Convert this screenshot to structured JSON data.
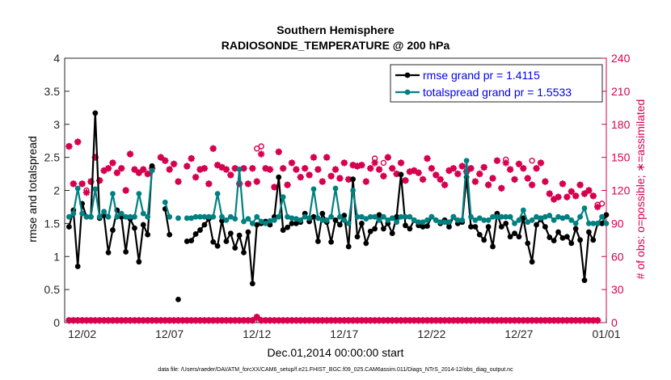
{
  "chart_data": {
    "type": "line",
    "title": "Southern Hemisphere",
    "subtitle": "RADIOSONDE_TEMPERATURE @ 200 hPa",
    "xlabel": "Dec.01,2014 00:00:00 start",
    "ylabel_left": "rmse and totalspread",
    "ylabel_right": "# of obs: o=possible; ∗=assimilated",
    "xlim": [
      1,
      32
    ],
    "ylim_left": [
      0,
      4
    ],
    "ylim_right": [
      0,
      240
    ],
    "x_ticks": [
      {
        "value": 2,
        "label": "12/02"
      },
      {
        "value": 7,
        "label": "12/07"
      },
      {
        "value": 12,
        "label": "12/12"
      },
      {
        "value": 17,
        "label": "12/17"
      },
      {
        "value": 22,
        "label": "12/22"
      },
      {
        "value": 27,
        "label": "12/27"
      },
      {
        "value": 32,
        "label": "01/01"
      }
    ],
    "y_ticks_left": [
      "0",
      "0.5",
      "1",
      "1.5",
      "2",
      "2.5",
      "3",
      "3.5",
      "4"
    ],
    "y_ticks_right": [
      "0",
      "30",
      "60",
      "90",
      "120",
      "150",
      "180",
      "210",
      "240"
    ],
    "x": [
      1.25,
      1.5,
      1.75,
      2,
      2.25,
      2.5,
      2.75,
      3,
      3.25,
      3.5,
      3.75,
      4,
      4.25,
      4.5,
      4.75,
      5,
      5.25,
      5.5,
      5.75,
      6,
      6.25,
      6.5,
      6.75,
      7,
      7.25,
      7.5,
      7.75,
      8,
      8.25,
      8.5,
      8.75,
      9,
      9.25,
      9.5,
      9.75,
      10,
      10.25,
      10.5,
      10.75,
      11,
      11.25,
      11.5,
      11.75,
      12,
      12.25,
      12.5,
      12.75,
      13,
      13.25,
      13.5,
      13.75,
      14,
      14.25,
      14.5,
      14.75,
      15,
      15.25,
      15.5,
      15.75,
      16,
      16.25,
      16.5,
      16.75,
      17,
      17.25,
      17.5,
      17.75,
      18,
      18.25,
      18.5,
      18.75,
      19,
      19.25,
      19.5,
      19.75,
      20,
      20.25,
      20.5,
      20.75,
      21,
      21.25,
      21.5,
      21.75,
      22,
      22.25,
      22.5,
      22.75,
      23,
      23.25,
      23.5,
      23.75,
      24,
      24.25,
      24.5,
      24.75,
      25,
      25.25,
      25.5,
      25.75,
      26,
      26.25,
      26.5,
      26.75,
      27,
      27.25,
      27.5,
      27.75,
      28,
      28.25,
      28.5,
      28.75,
      29,
      29.25,
      29.5,
      29.75,
      30,
      30.25,
      30.5,
      30.75,
      31,
      31.25,
      31.5,
      31.75,
      32
    ],
    "series": [
      {
        "name": "rmse",
        "color": "#000000",
        "values": [
          1.45,
          1.7,
          0.85,
          1.8,
          1.6,
          1.6,
          3.17,
          1.58,
          1.62,
          1.06,
          1.4,
          1.7,
          1.6,
          1.07,
          1.57,
          1.43,
          0.92,
          1.48,
          1.33,
          2.37,
          null,
          null,
          1.72,
          1.33,
          null,
          0.35,
          null,
          1.23,
          1.24,
          1.34,
          1.4,
          1.48,
          1.57,
          1.22,
          1.16,
          1.54,
          1.23,
          1.35,
          1.13,
          1.32,
          1.06,
          1.37,
          0.59,
          1.48,
          1.5,
          1.53,
          1.48,
          1.6,
          2.2,
          1.4,
          1.44,
          1.5,
          1.5,
          1.52,
          1.65,
          1.53,
          1.6,
          1.23,
          1.65,
          1.52,
          1.22,
          1.55,
          1.48,
          1.62,
          1.15,
          2.17,
          1.3,
          1.5,
          1.2,
          1.38,
          1.42,
          1.63,
          1.42,
          1.5,
          1.35,
          1.6,
          2.24,
          1.47,
          1.42,
          1.55,
          1.47,
          1.45,
          1.46,
          1.6,
          1.55,
          1.5,
          1.55,
          1.45,
          1.6,
          1.5,
          1.52,
          2.2,
          1.45,
          1.45,
          1.33,
          1.25,
          1.45,
          1.15,
          1.65,
          1.45,
          1.5,
          1.3,
          1.35,
          1.3,
          1.58,
          1.2,
          0.92,
          1.48,
          1.56,
          1.45,
          1.29,
          1.24,
          1.37,
          1.28,
          1.3,
          1.2,
          1.42,
          1.25,
          0.64,
          1.37,
          1.25,
          1.5,
          1.5,
          1.63
        ],
        "marker": "filled circle"
      },
      {
        "name": "totalspread",
        "color": "#008080",
        "values": [
          1.6,
          1.65,
          2.03,
          1.65,
          1.6,
          1.6,
          2.02,
          1.6,
          1.68,
          1.6,
          1.95,
          1.6,
          1.65,
          1.6,
          1.6,
          1.6,
          1.95,
          1.65,
          1.6,
          2.3,
          null,
          null,
          1.82,
          1.6,
          null,
          1.58,
          null,
          1.58,
          1.58,
          1.6,
          1.6,
          1.6,
          1.6,
          1.6,
          1.95,
          1.6,
          1.55,
          1.6,
          1.57,
          2.32,
          1.53,
          1.57,
          1.5,
          1.6,
          1.53,
          1.5,
          1.54,
          1.55,
          1.6,
          1.9,
          1.6,
          1.58,
          1.57,
          1.55,
          1.6,
          1.58,
          2.02,
          1.58,
          1.55,
          1.55,
          1.6,
          2.03,
          1.6,
          1.55,
          1.5,
          2.0,
          1.6,
          1.6,
          1.57,
          1.6,
          1.6,
          1.55,
          1.6,
          1.55,
          1.58,
          1.52,
          1.6,
          1.6,
          1.6,
          1.55,
          1.52,
          1.52,
          1.55,
          1.6,
          1.55,
          1.52,
          1.52,
          1.52,
          1.6,
          1.55,
          1.55,
          2.45,
          1.6,
          1.55,
          1.58,
          1.55,
          1.55,
          1.6,
          1.6,
          1.6,
          1.6,
          1.6,
          1.5,
          1.55,
          1.7,
          1.52,
          1.55,
          1.6,
          1.58,
          1.6,
          1.62,
          1.55,
          1.6,
          1.58,
          1.6,
          1.55,
          1.5,
          1.6,
          1.73,
          1.5,
          1.5,
          1.5,
          1.6,
          1.5
        ],
        "marker": "filled circle"
      }
    ],
    "obs_possible_mean": [
      160,
      126,
      164,
      126,
      120,
      128,
      150,
      129,
      138,
      140,
      145,
      136,
      140,
      120,
      153,
      139,
      136,
      139,
      135,
      140,
      null,
      150,
      147,
      139,
      144,
      128,
      null,
      142,
      149,
      132,
      139,
      140,
      126,
      158,
      143,
      141,
      139,
      134,
      140,
      126,
      140,
      126,
      140,
      128,
      160,
      140,
      139,
      123,
      155,
      140,
      125,
      145,
      139,
      132,
      140,
      134,
      150,
      139,
      128,
      150,
      133,
      139,
      131,
      145,
      130,
      143,
      142,
      143,
      128,
      140,
      149,
      139,
      133,
      150,
      140,
      135,
      145,
      129,
      137,
      138,
      136,
      130,
      149,
      140,
      134,
      130,
      125,
      138,
      140,
      135,
      142,
      137,
      140,
      128,
      135,
      141,
      125,
      131,
      147,
      122,
      148,
      139,
      130,
      144,
      140,
      131,
      125,
      140,
      145,
      128,
      117,
      112,
      114,
      126,
      114,
      119,
      115,
      125,
      117,
      120,
      115,
      107
    ],
    "obs_assimilated": [
      160,
      126,
      164,
      126,
      118,
      128,
      150,
      129,
      138,
      140,
      145,
      136,
      140,
      120,
      153,
      139,
      136,
      139,
      135,
      140,
      null,
      150,
      147,
      139,
      144,
      128,
      null,
      142,
      149,
      132,
      139,
      140,
      126,
      158,
      143,
      141,
      139,
      134,
      140,
      126,
      140,
      126,
      140,
      128,
      153,
      140,
      139,
      123,
      155,
      140,
      125,
      145,
      139,
      132,
      140,
      134,
      150,
      139,
      128,
      150,
      133,
      139,
      131,
      145,
      130,
      143,
      142,
      143,
      128,
      140,
      145,
      139,
      133,
      150,
      140,
      135,
      145,
      129,
      137,
      138,
      136,
      130,
      149,
      140,
      134,
      130,
      125,
      138,
      140,
      135,
      142,
      137,
      140,
      128,
      135,
      141,
      125,
      131,
      147,
      122,
      145,
      139,
      130,
      144,
      140,
      131,
      125,
      140,
      145,
      128,
      117,
      112,
      114,
      126,
      114,
      119,
      115,
      125,
      117,
      120,
      115,
      105
    ],
    "obs_possible_extra": [
      {
        "x": 12.0,
        "value": 158
      },
      {
        "x": 19.25,
        "value": 145
      },
      {
        "x": 27.75,
        "value": 147
      },
      {
        "x": 31.75,
        "value": 108
      }
    ],
    "obs_bottom_possible": [
      2,
      2,
      2,
      2,
      2,
      2,
      2,
      2,
      2,
      2,
      2,
      2,
      2,
      2,
      2,
      2,
      2,
      2,
      2,
      2,
      2,
      2,
      2,
      2,
      2,
      2,
      2,
      2,
      2,
      2,
      2,
      2,
      2,
      2,
      2,
      2,
      2,
      2,
      2,
      2,
      2,
      2,
      2,
      5,
      2,
      2,
      2,
      2,
      2,
      2,
      2,
      2,
      2,
      2,
      2,
      2,
      2,
      2,
      2,
      2,
      2,
      2,
      2,
      2,
      2,
      2,
      2,
      2,
      2,
      2,
      2,
      2,
      2,
      2,
      2,
      2,
      2,
      2,
      2,
      2,
      2,
      2,
      2,
      2,
      2,
      2,
      2,
      2,
      2,
      2,
      2,
      2,
      2,
      2,
      2,
      2,
      2,
      2,
      2,
      2,
      2,
      2,
      2,
      2,
      2,
      2,
      2,
      2,
      2,
      2,
      2,
      2,
      2,
      2,
      2,
      2,
      2,
      2,
      2,
      2,
      2,
      2
    ],
    "legend": [
      {
        "label": "rmse grand pr = 1.4115",
        "color": "#000000"
      },
      {
        "label": "totalspread grand pr = 1.5533",
        "color": "#008080"
      }
    ],
    "legend_position": "top-right",
    "right_axis_color": "#d6004f",
    "grid": false
  },
  "footnote": "data file: /Users/raeder/DAI/ATM_forcXX/CAM6_setup/f.e21.FHIST_BGC.f09_025.CAM6assim.011/Diags_NTrS_2014-12/obs_diag_output.nc"
}
